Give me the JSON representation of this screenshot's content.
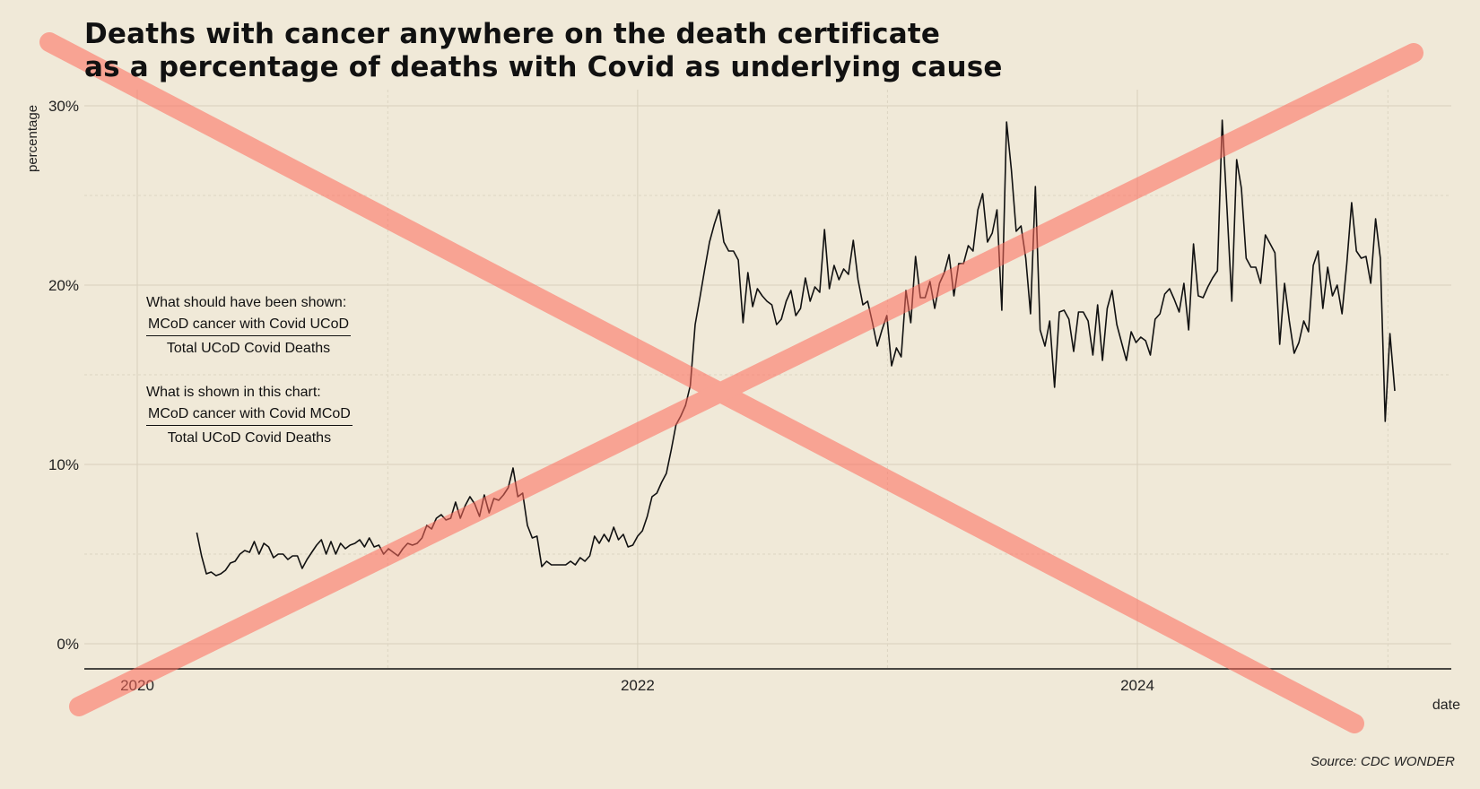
{
  "title_line1": "Deaths with cancer anywhere on the death certificate",
  "title_line2": "as a percentage of deaths with Covid as underlying cause",
  "source": "Source: CDC WONDER",
  "annotation": {
    "should_heading": "What should have been shown:",
    "should_numerator": "MCoD cancer with Covid UCoD",
    "should_denominator": "Total UCoD Covid Deaths",
    "shown_heading": "What is shown in this chart:",
    "shown_numerator": "MCoD cancer with Covid MCoD",
    "shown_denominator": "Total UCoD Covid Deaths"
  },
  "colors": {
    "background": "#f0e9d8",
    "line": "#111111",
    "cross": "#ff7b70"
  },
  "chart_data": {
    "type": "line",
    "title": "Deaths with cancer anywhere on the death certificate as a percentage of deaths with Covid as underlying cause",
    "xlabel": "date",
    "ylabel": "percentage",
    "xlim": [
      "2019-10-01",
      "2025-04-15"
    ],
    "ylim": [
      -1.4,
      30.8
    ],
    "x_ticks": [
      "2020",
      "2022",
      "2024"
    ],
    "y_ticks": [
      "0%",
      "10%",
      "20%",
      "30%"
    ],
    "grid": true,
    "annotation_overlay": "red X crossing out the chart",
    "series": [
      {
        "start": "2020-03-28",
        "interval_days": 7,
        "values": [
          6.2,
          4.9,
          3.9,
          4.0,
          3.8,
          3.9,
          4.1,
          4.5,
          4.6,
          5.0,
          5.2,
          5.1,
          5.7,
          5.0,
          5.6,
          5.4,
          4.8,
          5.0,
          5.0,
          4.7,
          4.9,
          4.9,
          4.2,
          4.7,
          5.1,
          5.5,
          5.8,
          5.0,
          5.7,
          5.0,
          5.6,
          5.3,
          5.5,
          5.6,
          5.8,
          5.4,
          5.9,
          5.4,
          5.5,
          5.0,
          5.3,
          5.1,
          4.9,
          5.3,
          5.6,
          5.5,
          5.6,
          5.9,
          6.6,
          6.4,
          7.0,
          7.2,
          6.9,
          7.0,
          7.9,
          7.0,
          7.7,
          8.2,
          7.8,
          7.1,
          8.3,
          7.3,
          8.1,
          8.0,
          8.3,
          8.7,
          9.8,
          8.2,
          8.4,
          6.6,
          5.9,
          6.0,
          4.3,
          4.6,
          4.4,
          4.4,
          4.4,
          4.4,
          4.6,
          4.4,
          4.8,
          4.6,
          4.9,
          6.0,
          5.6,
          6.1,
          5.7,
          6.5,
          5.8,
          6.1,
          5.4,
          5.5,
          6.0,
          6.3,
          7.1,
          8.2,
          8.4,
          9.0,
          9.5,
          10.8,
          12.2,
          12.7,
          13.3,
          14.4,
          17.8,
          19.3,
          20.9,
          22.4,
          23.4,
          24.2,
          22.4,
          21.9,
          21.9,
          21.4,
          17.9,
          20.7,
          18.8,
          19.8,
          19.4,
          19.1,
          18.9,
          17.8,
          18.1,
          19.1,
          19.7,
          18.3,
          18.7,
          20.4,
          19.1,
          19.9,
          19.6,
          23.1,
          19.8,
          21.1,
          20.3,
          20.9,
          20.6,
          22.5,
          20.3,
          18.9,
          19.1,
          17.9,
          16.6,
          17.5,
          18.3,
          15.5,
          16.5,
          16.0,
          19.7,
          17.9,
          21.6,
          19.3,
          19.3,
          20.2,
          18.7,
          20.1,
          20.7,
          21.7,
          19.4,
          21.2,
          21.2,
          22.2,
          21.9,
          24.2,
          25.1,
          22.4,
          22.9,
          24.2,
          18.6,
          29.1,
          26.4,
          23.0,
          23.3,
          21.5,
          18.4,
          25.5,
          17.5,
          16.6,
          18.0,
          14.3,
          18.5,
          18.6,
          18.1,
          16.3,
          18.5,
          18.5,
          18.0,
          16.1,
          18.9,
          15.8,
          18.7,
          19.7,
          17.8,
          16.8,
          15.8,
          17.4,
          16.8,
          17.1,
          16.9,
          16.1,
          18.1,
          18.4,
          19.5,
          19.8,
          19.2,
          18.5,
          20.1,
          17.5,
          22.3,
          19.4,
          19.3,
          19.9,
          20.4,
          20.8,
          29.2,
          24.2,
          19.1,
          27.0,
          25.4,
          21.5,
          21.0,
          21.0,
          20.1,
          22.8,
          22.3,
          21.8,
          16.7,
          20.1,
          18.0,
          16.2,
          16.8,
          18.0,
          17.4,
          21.1,
          21.9,
          18.7,
          21.0,
          19.4,
          20.0,
          18.4,
          21.2,
          24.6,
          21.9,
          21.5,
          21.6,
          20.1,
          23.7,
          21.5,
          12.4,
          17.3,
          14.1
        ]
      }
    ]
  }
}
